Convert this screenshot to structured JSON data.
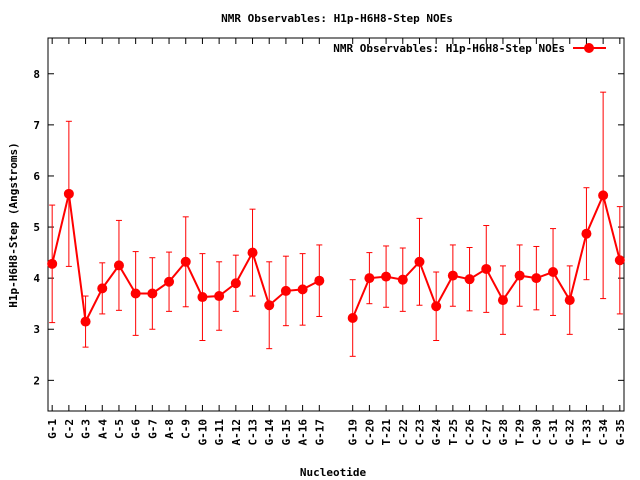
{
  "chart_data": {
    "type": "line",
    "title": "NMR Observables: H1p-H6H8-Step NOEs",
    "xlabel": "Nucleotide",
    "ylabel": "H1p-H6H8-Step (Angstroms)",
    "ylim": [
      1.4,
      8.7
    ],
    "yticks": [
      2,
      3,
      4,
      5,
      6,
      7,
      8
    ],
    "legend": {
      "label": "NMR Observables: H1p-H6H8-Step NOEs",
      "position": "top-right"
    },
    "series_color": "#ff0000",
    "categories": [
      "G-1",
      "C-2",
      "G-3",
      "A-4",
      "C-5",
      "G-6",
      "G-7",
      "A-8",
      "C-9",
      "G-10",
      "G-11",
      "A-12",
      "C-13",
      "G-14",
      "G-15",
      "A-16",
      "G-17",
      "G-19",
      "C-20",
      "T-21",
      "C-22",
      "C-23",
      "G-24",
      "T-25",
      "C-26",
      "C-27",
      "G-28",
      "T-29",
      "C-30",
      "C-31",
      "G-32",
      "T-33",
      "C-34",
      "G-35"
    ],
    "positions": [
      1,
      2,
      3,
      4,
      5,
      6,
      7,
      8,
      9,
      10,
      11,
      12,
      13,
      14,
      15,
      16,
      17,
      19,
      20,
      21,
      22,
      23,
      24,
      25,
      26,
      27,
      28,
      29,
      30,
      31,
      32,
      33,
      34,
      35
    ],
    "segments": [
      [
        0,
        16
      ],
      [
        17,
        33
      ]
    ],
    "values": [
      4.28,
      5.65,
      3.15,
      3.8,
      4.25,
      3.7,
      3.7,
      3.93,
      4.32,
      3.63,
      3.65,
      3.9,
      4.5,
      3.47,
      3.75,
      3.78,
      3.95,
      3.22,
      4.0,
      4.03,
      3.97,
      4.32,
      3.45,
      4.05,
      3.98,
      4.18,
      3.57,
      4.05,
      4.0,
      4.12,
      3.57,
      4.87,
      5.62,
      4.35
    ],
    "errors": [
      1.15,
      1.42,
      0.5,
      0.5,
      0.88,
      0.82,
      0.7,
      0.58,
      0.88,
      0.85,
      0.67,
      0.55,
      0.85,
      0.85,
      0.68,
      0.7,
      0.7,
      0.75,
      0.5,
      0.6,
      0.62,
      0.85,
      0.67,
      0.6,
      0.62,
      0.85,
      0.67,
      0.6,
      0.62,
      0.85,
      0.67,
      0.9,
      2.02,
      1.05
    ]
  }
}
